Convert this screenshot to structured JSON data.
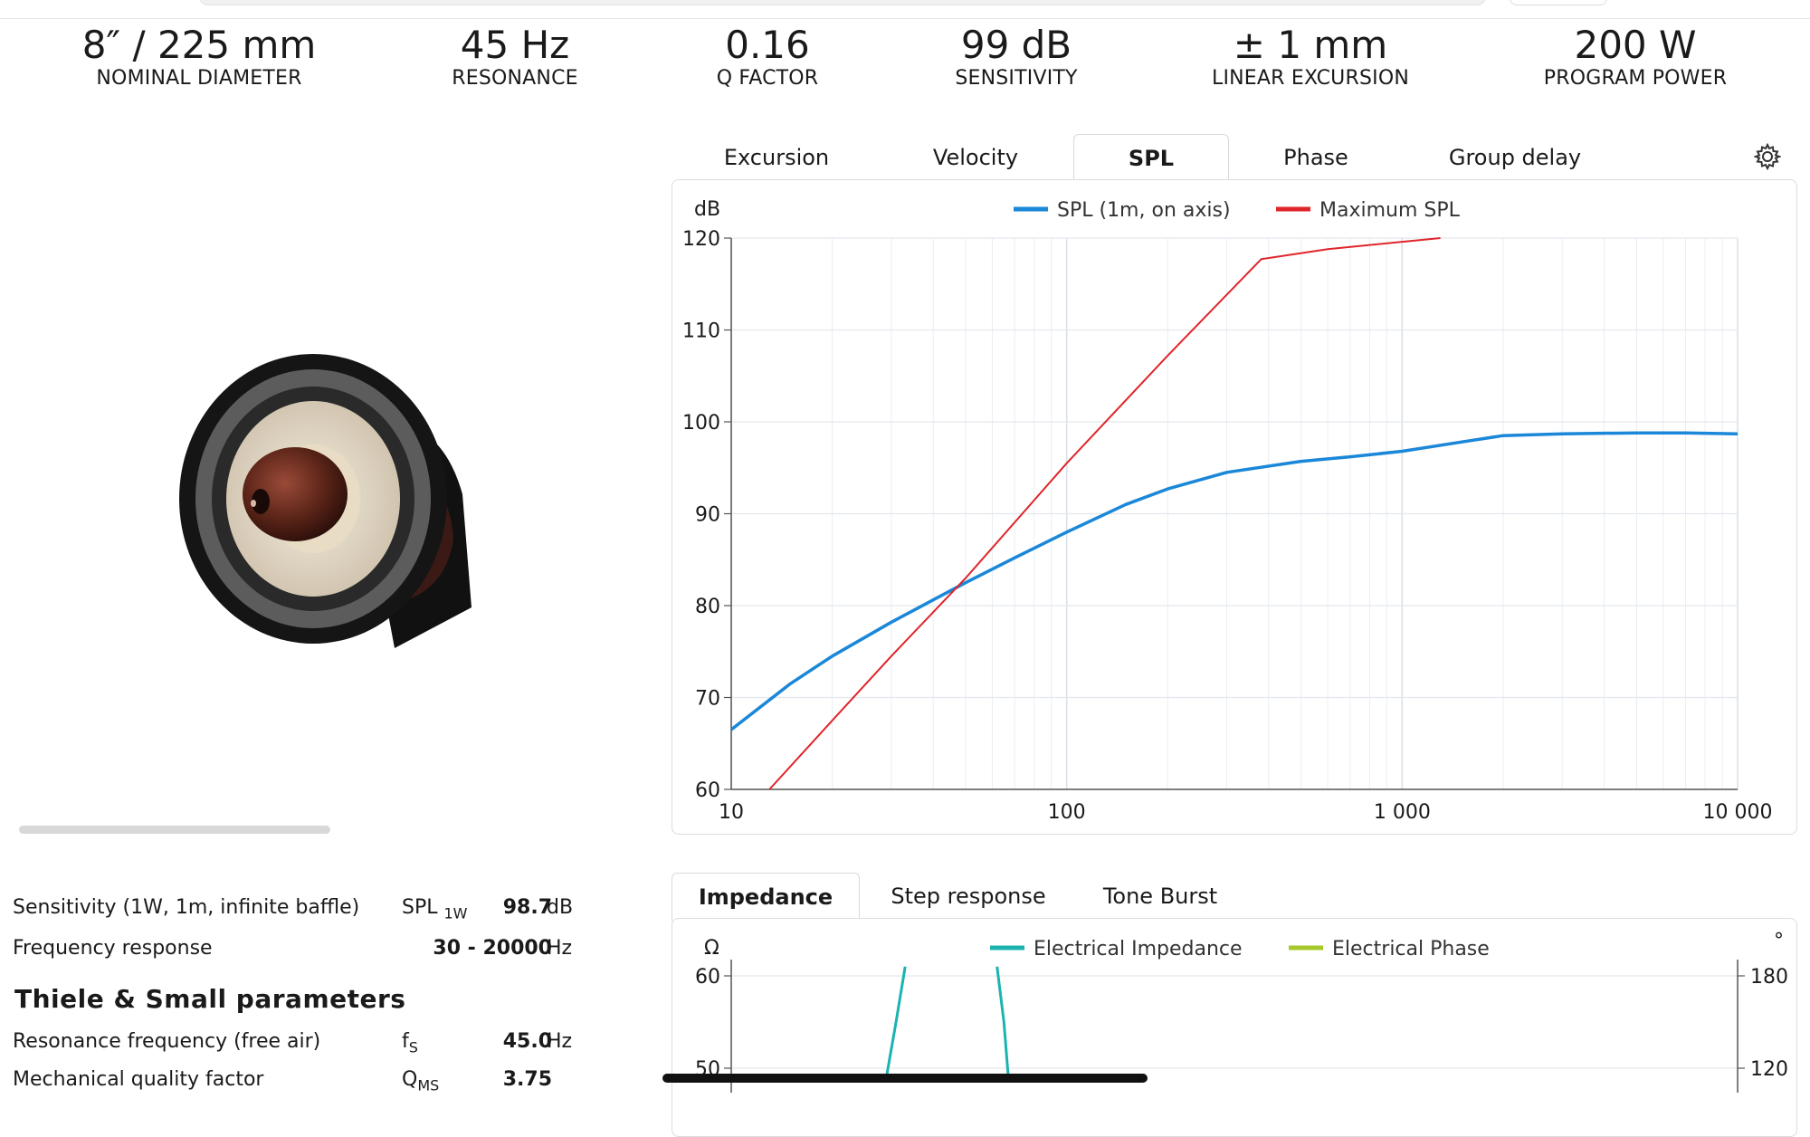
{
  "specs": [
    {
      "value": "8″ / 225 mm",
      "label": "NOMINAL DIAMETER"
    },
    {
      "value": "45 Hz",
      "label": "RESONANCE"
    },
    {
      "value": "0.16",
      "label": "Q FACTOR"
    },
    {
      "value": "99 dB",
      "label": "SENSITIVITY"
    },
    {
      "value": "± 1 mm",
      "label": "LINEAR EXCURSION"
    },
    {
      "value": "200 W",
      "label": "PROGRAM POWER"
    }
  ],
  "upper_tabs": [
    "Excursion",
    "Velocity",
    "SPL",
    "Phase",
    "Group delay"
  ],
  "upper_active": "SPL",
  "lower_tabs": [
    "Impedance",
    "Step response",
    "Tone Burst"
  ],
  "lower_active": "Impedance",
  "icons": {
    "settings": "gear-icon",
    "product": "loudspeaker-driver-image"
  },
  "colors": {
    "spl": "#1a87d8",
    "max_spl": "#e0252b",
    "impedance": "#1bb3b0",
    "phase": "#a6c82a"
  },
  "chart_data": [
    {
      "type": "line",
      "title": "",
      "xlabel": "",
      "ylabel": "dB",
      "x_scale": "log",
      "xlim": [
        10,
        10000
      ],
      "ylim": [
        60,
        120
      ],
      "x_ticks": [
        "10",
        "100",
        "1 000",
        "10 000"
      ],
      "y_ticks": [
        "60",
        "70",
        "80",
        "90",
        "100",
        "110",
        "120"
      ],
      "grid": true,
      "legend": "top-center",
      "series": [
        {
          "name": "SPL (1m, on axis)",
          "color": "#1a87d8",
          "x": [
            10,
            15,
            20,
            30,
            50,
            70,
            100,
            150,
            200,
            300,
            500,
            700,
            1000,
            1500,
            2000,
            3000,
            5000,
            7000,
            10000
          ],
          "y": [
            66.5,
            71.5,
            74.5,
            78.2,
            82.5,
            85.2,
            88.0,
            91.0,
            92.7,
            94.5,
            95.7,
            96.2,
            96.8,
            97.8,
            98.5,
            98.7,
            98.8,
            98.8,
            98.7
          ]
        },
        {
          "name": "Maximum SPL",
          "color": "#e0252b",
          "x": [
            13,
            20,
            30,
            50,
            100,
            200,
            380,
            600,
            1000,
            1300
          ],
          "y": [
            60,
            67.5,
            74.5,
            83,
            95.5,
            107.2,
            117.7,
            118.8,
            119.6,
            120
          ]
        }
      ]
    },
    {
      "type": "line",
      "title": "",
      "ylabel": "Ω",
      "y2label": "°",
      "x_scale": "log",
      "xlim": [
        10,
        10000
      ],
      "ylim": [
        50,
        60
      ],
      "y2lim": [
        120,
        180
      ],
      "y_ticks": [
        "60",
        "50"
      ],
      "y2_ticks": [
        "180",
        "120"
      ],
      "legend": "top-center",
      "series": [
        {
          "name": "Electrical Impedance",
          "color": "#1bb3b0",
          "x": [
            29,
            31,
            33,
            62,
            65,
            67
          ],
          "y": [
            49,
            55,
            61,
            61,
            55,
            49
          ]
        },
        {
          "name": "Electrical Phase",
          "color": "#a6c82a",
          "x": [],
          "y": []
        }
      ]
    }
  ],
  "properties": {
    "rows_top": [
      {
        "label": "Sensitivity (1W, 1m, infinite baffle)",
        "symbol": "SPL",
        "symbol_sub": "1W",
        "value": "98.7",
        "unit": "dB"
      },
      {
        "label": "Frequency response",
        "symbol": "",
        "symbol_sub": "",
        "value": "30 - 20000",
        "unit": "Hz"
      }
    ],
    "heading": "Thiele & Small parameters",
    "rows_ts": [
      {
        "label": "Resonance frequency (free air)",
        "symbol": "f",
        "symbol_sub": "S",
        "value": "45.0",
        "unit": "Hz"
      },
      {
        "label": "Mechanical quality factor",
        "symbol": "Q",
        "symbol_sub": "MS",
        "value": "3.75",
        "unit": ""
      }
    ]
  }
}
